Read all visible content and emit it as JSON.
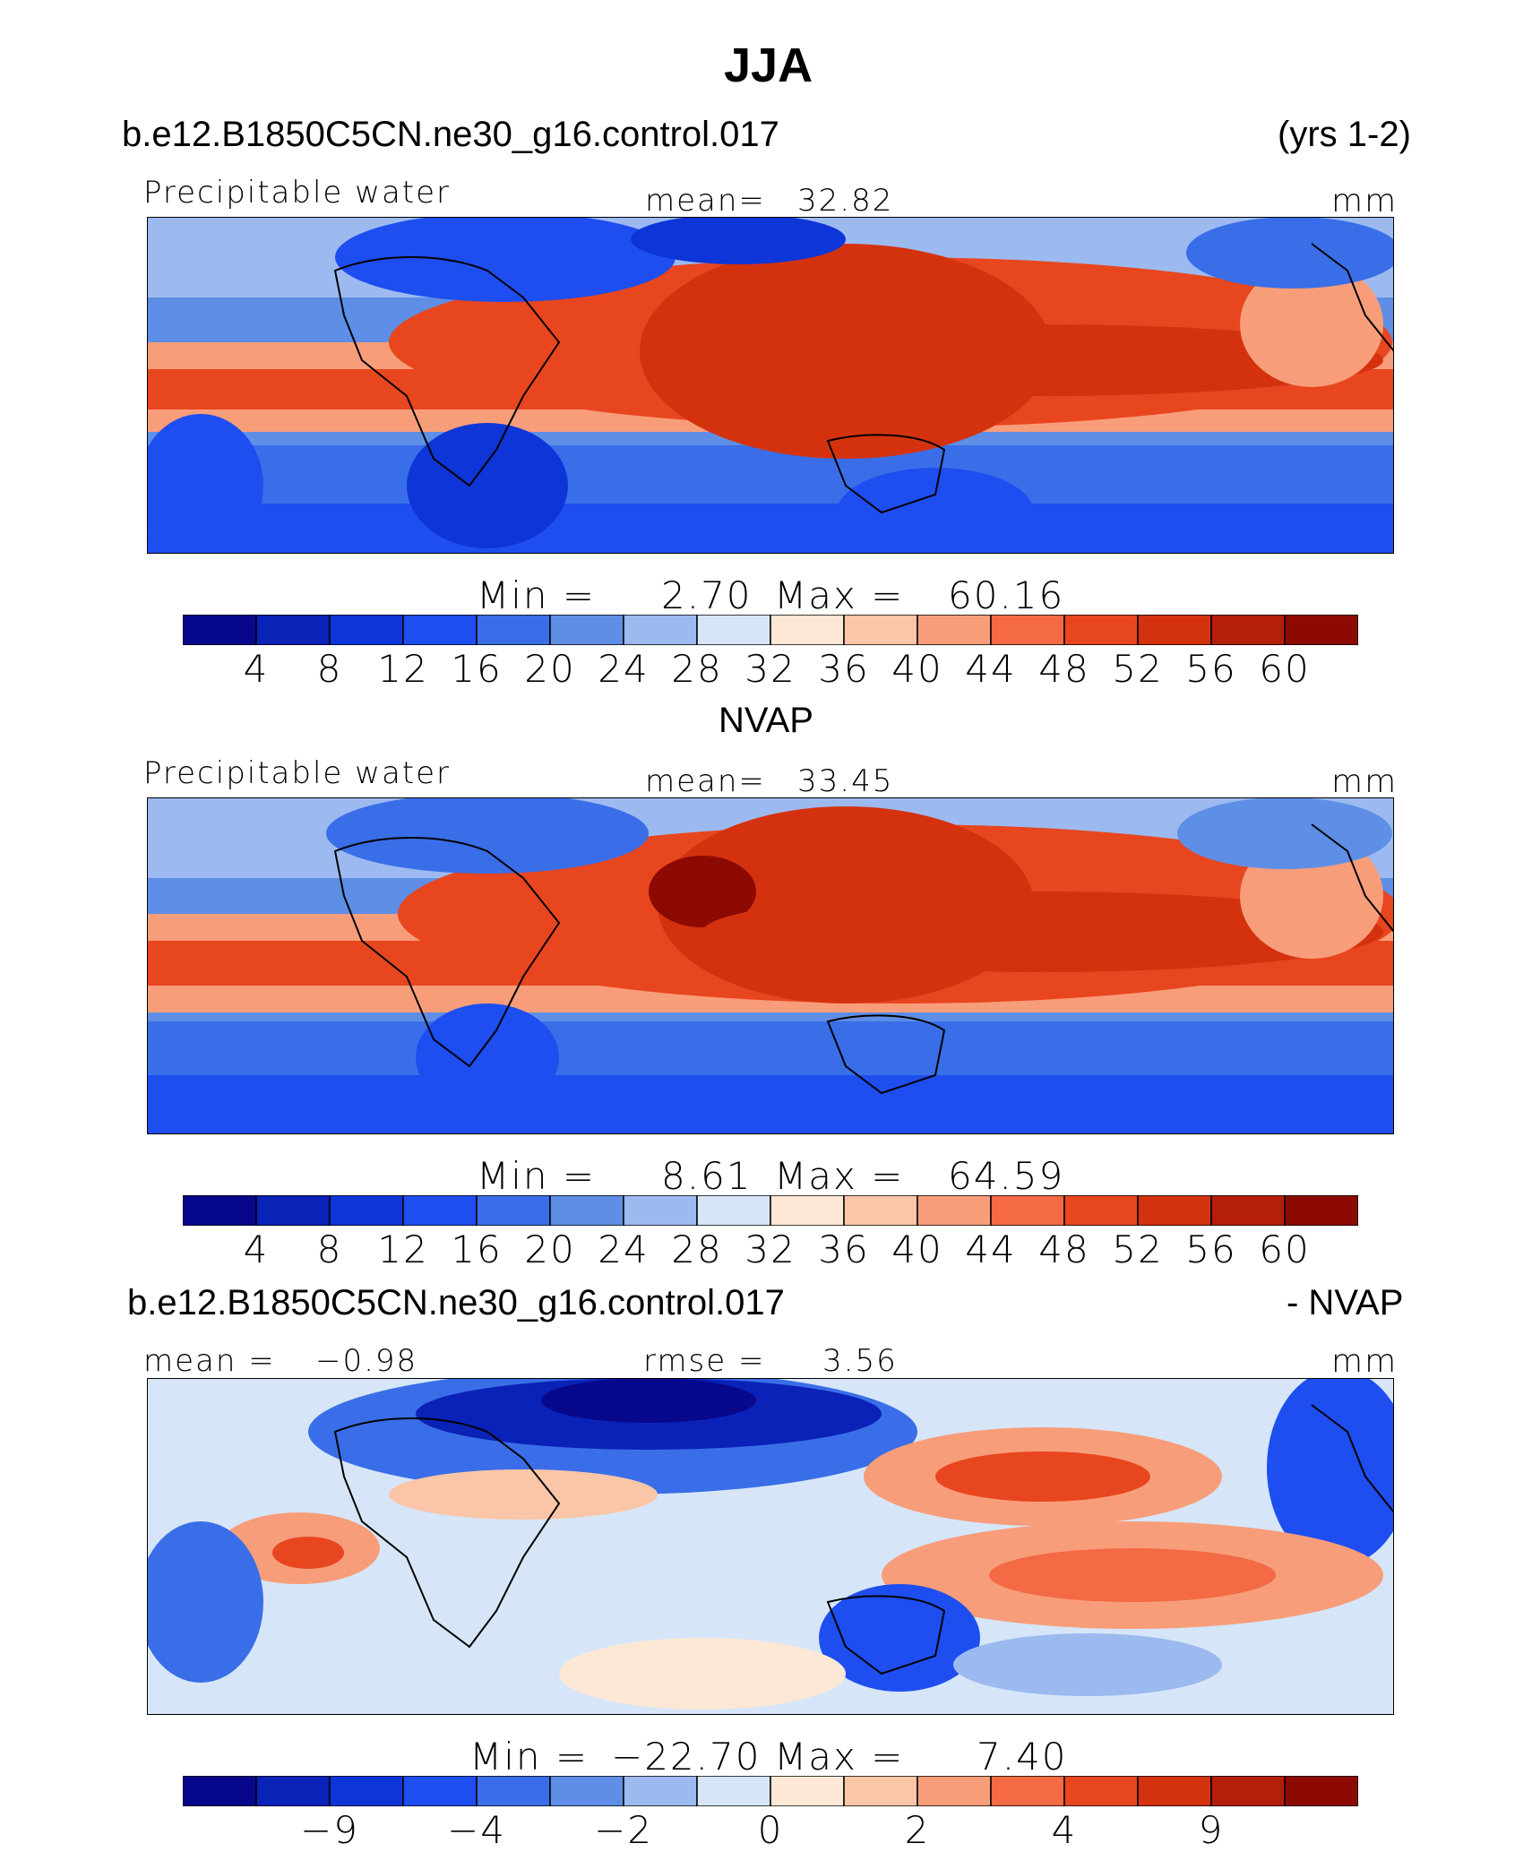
{
  "page": {
    "title": "JJA",
    "case_name": "b.e12.B1850C5CN.ne30_g16.control.017",
    "years": "(yrs 1-2)",
    "obs_name": "NVAP",
    "diff_case_name": "b.e12.B1850C5CN.ne30_g16.control.017",
    "diff_suffix": "- NVAP"
  },
  "colors": {
    "palette": [
      "#08088c",
      "#0a22b8",
      "#0d35d8",
      "#1e4ef0",
      "#3a6ee8",
      "#5e8ee6",
      "#9cbaf0",
      "#d6e6f8",
      "#fde8d6",
      "#fbc5a8",
      "#f89d7a",
      "#f36a45",
      "#e8461f",
      "#d4320f",
      "#b51e08",
      "#8c0a02"
    ]
  },
  "chart_data": [
    {
      "type": "heatmap",
      "panel_title": "Precipitable water",
      "mean_label": "mean=",
      "mean_value": "32.82",
      "units": "mm",
      "min_label": "Min  =",
      "min_value": "2.70",
      "max_label": "Max  =",
      "max_value": "60.16",
      "colorbar_ticks": [
        "4",
        "8",
        "12",
        "16",
        "20",
        "24",
        "28",
        "32",
        "36",
        "40",
        "44",
        "48",
        "52",
        "56",
        "60"
      ]
    },
    {
      "type": "heatmap",
      "panel_title": "Precipitable water",
      "mean_label": "mean=",
      "mean_value": "33.45",
      "units": "mm",
      "min_label": "Min  =",
      "min_value": "8.61",
      "max_label": "Max  =",
      "max_value": "64.59",
      "colorbar_ticks": [
        "4",
        "8",
        "12",
        "16",
        "20",
        "24",
        "28",
        "32",
        "36",
        "40",
        "44",
        "48",
        "52",
        "56",
        "60"
      ]
    },
    {
      "type": "heatmap",
      "mean_label": "mean  =",
      "mean_value": "−0.98",
      "rmse_label": "rmse  =",
      "rmse_value": "3.56",
      "units": "mm",
      "min_label": "Min  =",
      "min_value": "−22.70",
      "max_label": "Max  =",
      "max_value": "7.40",
      "colorbar_ticks": [
        "−9",
        "−4",
        "−2",
        "0",
        "2",
        "4",
        "9"
      ]
    }
  ]
}
